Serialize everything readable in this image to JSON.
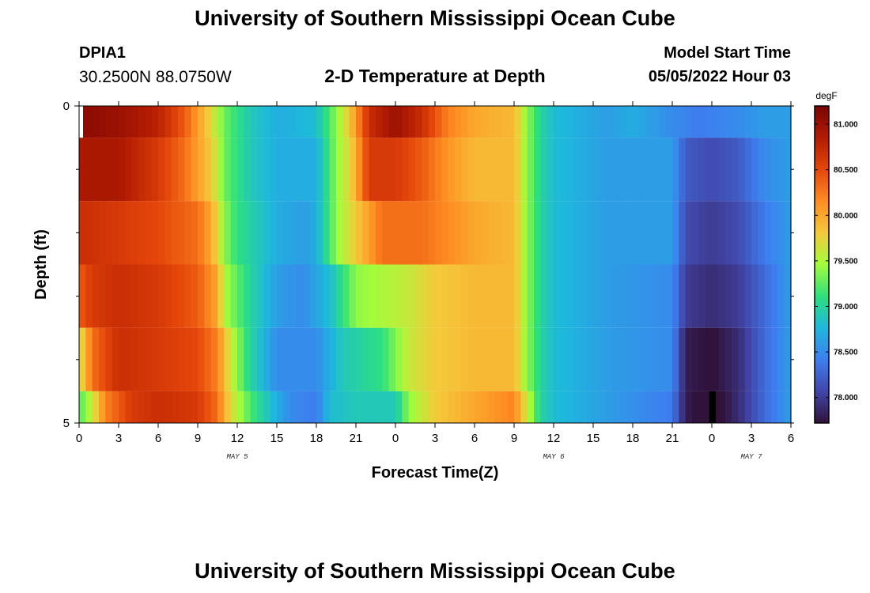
{
  "header": {
    "title": "University of Southern Mississippi Ocean Cube",
    "station_id": "DPIA1",
    "station_coords": "30.2500N  88.0750W",
    "plot_title": "2-D Temperature at Depth",
    "model_start_label": "Model Start Time",
    "model_start_value": "05/05/2022 Hour 03"
  },
  "footer": {
    "title": "University of Southern Mississippi Ocean Cube"
  },
  "chart_data": {
    "type": "heatmap",
    "title": "2-D Temperature at Depth",
    "xlabel": "Forecast Time(Z)",
    "ylabel": "Depth (ft)",
    "x_tick_labels": [
      "0",
      "3",
      "6",
      "9",
      "12",
      "15",
      "18",
      "21",
      "0",
      "3",
      "6",
      "9",
      "12",
      "15",
      "18",
      "21",
      "0",
      "3",
      "6"
    ],
    "x_hours_range": [
      0,
      54
    ],
    "date_labels": [
      {
        "text": "MAY 5",
        "hour": 12
      },
      {
        "text": "MAY 6",
        "hour": 36
      },
      {
        "text": "MAY 7",
        "hour": 51
      }
    ],
    "y_tick_labels": [
      "0",
      "5"
    ],
    "ylim": [
      0,
      5
    ],
    "depth_layers": [
      {
        "top": 0.0,
        "bottom": 0.5
      },
      {
        "top": 0.5,
        "bottom": 1.5
      },
      {
        "top": 1.5,
        "bottom": 2.5
      },
      {
        "top": 2.5,
        "bottom": 3.5
      },
      {
        "top": 3.5,
        "bottom": 4.5
      },
      {
        "top": 4.5,
        "bottom": 5.0
      }
    ],
    "temperature_keyframes_degF": [
      [
        [
          0,
          81.1
        ],
        [
          3,
          81.0
        ],
        [
          6,
          80.8
        ],
        [
          8,
          80.4
        ],
        [
          9.5,
          79.9
        ],
        [
          11,
          79.3
        ],
        [
          13,
          78.9
        ],
        [
          15,
          78.7
        ],
        [
          18,
          78.8
        ],
        [
          19.5,
          79.4
        ],
        [
          20.5,
          79.8
        ],
        [
          22,
          80.7
        ],
        [
          24,
          81.0
        ],
        [
          26,
          80.7
        ],
        [
          28,
          80.2
        ],
        [
          30,
          80.0
        ],
        [
          33,
          79.9
        ],
        [
          34,
          79.4
        ],
        [
          35,
          79.0
        ],
        [
          36,
          78.8
        ],
        [
          40,
          78.6
        ],
        [
          42,
          78.7
        ],
        [
          45,
          78.5
        ],
        [
          47,
          78.4
        ],
        [
          50,
          78.5
        ],
        [
          52,
          78.6
        ],
        [
          54,
          78.6
        ]
      ],
      [
        [
          0,
          80.9
        ],
        [
          3,
          80.9
        ],
        [
          6,
          80.6
        ],
        [
          8,
          80.3
        ],
        [
          10,
          79.8
        ],
        [
          11,
          79.3
        ],
        [
          13,
          78.9
        ],
        [
          15,
          78.7
        ],
        [
          18,
          78.7
        ],
        [
          19.5,
          79.4
        ],
        [
          20.5,
          79.7
        ],
        [
          22,
          80.6
        ],
        [
          24,
          80.6
        ],
        [
          26,
          80.4
        ],
        [
          28,
          80.1
        ],
        [
          30,
          79.9
        ],
        [
          33,
          79.9
        ],
        [
          34,
          79.4
        ],
        [
          35,
          79.0
        ],
        [
          36,
          78.8
        ],
        [
          40,
          78.6
        ],
        [
          45,
          78.6
        ],
        [
          46,
          78.2
        ],
        [
          48,
          78.1
        ],
        [
          50,
          78.2
        ],
        [
          52,
          78.5
        ],
        [
          54,
          78.6
        ]
      ],
      [
        [
          0,
          80.7
        ],
        [
          3,
          80.6
        ],
        [
          6,
          80.5
        ],
        [
          9,
          80.3
        ],
        [
          10,
          80.0
        ],
        [
          11,
          79.4
        ],
        [
          12,
          79.1
        ],
        [
          15,
          78.7
        ],
        [
          17,
          78.6
        ],
        [
          18,
          78.7
        ],
        [
          19.5,
          79.4
        ],
        [
          21,
          79.8
        ],
        [
          23,
          80.3
        ],
        [
          26,
          80.3
        ],
        [
          30,
          80.0
        ],
        [
          33,
          79.9
        ],
        [
          34,
          79.4
        ],
        [
          35,
          79.0
        ],
        [
          36,
          78.8
        ],
        [
          40,
          78.6
        ],
        [
          45,
          78.6
        ],
        [
          46,
          78.1
        ],
        [
          48,
          78.0
        ],
        [
          50,
          78.1
        ],
        [
          52,
          78.4
        ],
        [
          54,
          78.6
        ]
      ],
      [
        [
          0,
          80.4
        ],
        [
          1,
          80.6
        ],
        [
          3,
          80.7
        ],
        [
          6,
          80.6
        ],
        [
          9,
          80.4
        ],
        [
          10.5,
          80.0
        ],
        [
          11,
          79.5
        ],
        [
          13,
          79.0
        ],
        [
          15,
          78.6
        ],
        [
          17,
          78.5
        ],
        [
          19,
          78.8
        ],
        [
          21,
          79.4
        ],
        [
          25,
          79.6
        ],
        [
          27,
          79.8
        ],
        [
          30,
          79.9
        ],
        [
          33,
          79.9
        ],
        [
          34,
          79.4
        ],
        [
          35,
          79.0
        ],
        [
          36,
          78.8
        ],
        [
          40,
          78.6
        ],
        [
          45,
          78.5
        ],
        [
          46,
          78.0
        ],
        [
          48,
          77.9
        ],
        [
          50,
          78.0
        ],
        [
          52,
          78.3
        ],
        [
          54,
          78.6
        ]
      ],
      [
        [
          0,
          79.6
        ],
        [
          1,
          80.3
        ],
        [
          3,
          80.7
        ],
        [
          6,
          80.6
        ],
        [
          9,
          80.5
        ],
        [
          10.5,
          80.2
        ],
        [
          11.5,
          79.6
        ],
        [
          13,
          79.0
        ],
        [
          15,
          78.5
        ],
        [
          18,
          78.5
        ],
        [
          20,
          78.9
        ],
        [
          23,
          79.1
        ],
        [
          25,
          79.6
        ],
        [
          27,
          79.8
        ],
        [
          30,
          79.9
        ],
        [
          33,
          79.9
        ],
        [
          34,
          79.4
        ],
        [
          35,
          79.0
        ],
        [
          36,
          78.8
        ],
        [
          40,
          78.6
        ],
        [
          45,
          78.5
        ],
        [
          46,
          77.8
        ],
        [
          48,
          77.7
        ],
        [
          50,
          77.9
        ],
        [
          52,
          78.3
        ],
        [
          54,
          78.6
        ]
      ],
      [
        [
          0,
          79.2
        ],
        [
          1,
          79.6
        ],
        [
          2,
          80.2
        ],
        [
          4,
          80.6
        ],
        [
          6,
          80.7
        ],
        [
          9,
          80.6
        ],
        [
          10.5,
          80.3
        ],
        [
          11.5,
          79.7
        ],
        [
          13,
          79.2
        ],
        [
          15,
          78.7
        ],
        [
          16,
          78.5
        ],
        [
          18,
          78.4
        ],
        [
          19,
          78.8
        ],
        [
          21,
          78.9
        ],
        [
          24,
          78.9
        ],
        [
          25,
          79.4
        ],
        [
          27,
          79.8
        ],
        [
          30,
          80.0
        ],
        [
          33,
          80.2
        ],
        [
          34,
          79.6
        ],
        [
          35,
          79.0
        ],
        [
          36,
          78.8
        ],
        [
          40,
          78.6
        ],
        [
          45,
          78.4
        ],
        [
          46,
          77.8
        ],
        [
          48,
          77.6
        ],
        [
          50,
          77.9
        ],
        [
          52,
          78.3
        ],
        [
          54,
          78.6
        ]
      ]
    ],
    "masked_cells": [
      {
        "layer": 0,
        "hour_start": 0,
        "hour_end": 0.3
      },
      {
        "layer": 5,
        "hour_start": 47.8,
        "hour_end": 48.3
      }
    ],
    "colorbar": {
      "unit": "degF",
      "min": 77.72,
      "max": 81.2,
      "tick_labels": [
        "78.000",
        "78.500",
        "79.000",
        "79.500",
        "80.000",
        "80.500",
        "81.000"
      ]
    }
  },
  "colors": {
    "colormap_stops": [
      "#30123b",
      "#4146a9",
      "#3e7ef0",
      "#1eb8dc",
      "#2ee07e",
      "#a4fc3b",
      "#f5c93a",
      "#fe8c22",
      "#e4460a",
      "#b31b02",
      "#7a0403"
    ],
    "masked_fill": "#ffffff",
    "masked_fill_deep": "#000000"
  }
}
